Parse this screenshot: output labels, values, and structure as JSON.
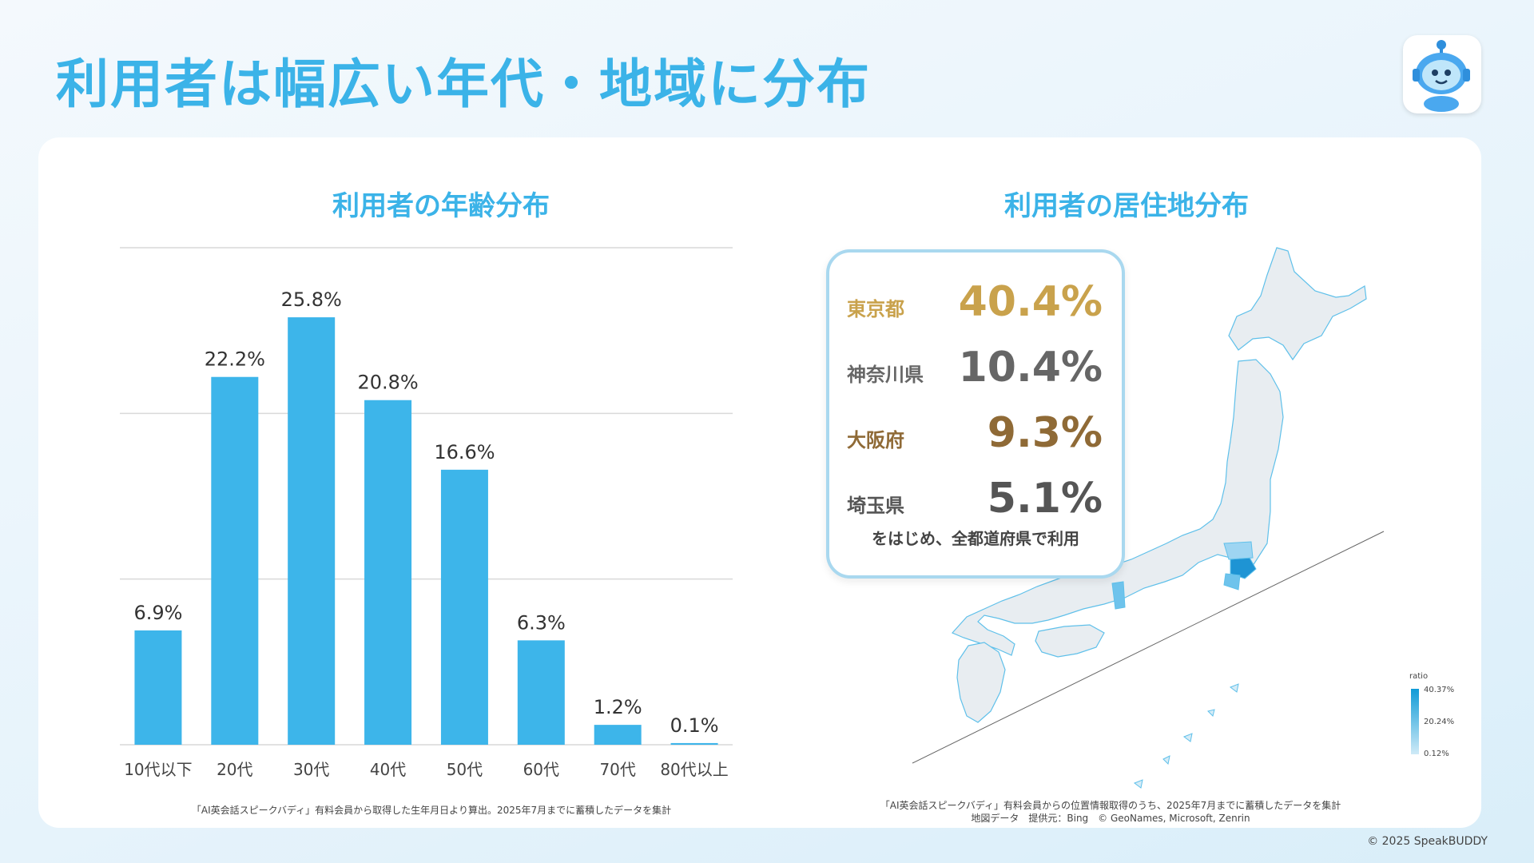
{
  "title": "利用者は幅広い年代・地域に分布",
  "age_panel": {
    "title": "利用者の年齢分布",
    "note": "「AI英会話スピークバディ」有料会員から取得した生年月日より算出。2025年7月までに蓄積したデータを集計"
  },
  "region_panel": {
    "title": "利用者の居住地分布",
    "stats": [
      {
        "name": "東京都",
        "value": "40.4%",
        "color": "#c9a24c"
      },
      {
        "name": "神奈川県",
        "value": "10.4%",
        "color": "#666666"
      },
      {
        "name": "大阪府",
        "value": "9.3%",
        "color": "#8f6a36"
      },
      {
        "name": "埼玉県",
        "value": "5.1%",
        "color": "#555555"
      }
    ],
    "stats_footer": "をはじめ、全都道府県で利用",
    "legend": {
      "title": "ratio",
      "ticks": [
        "40.37%",
        "20.24%",
        "0.12%"
      ]
    },
    "note_line1": "「AI英会話スピークバディ」有料会員からの位置情報取得のうち、2025年7月までに蓄積したデータを集計",
    "note_line2": "地図データ　提供元：Bing　© GeoNames, Microsoft, Zenrin"
  },
  "copyright": "© 2025 SpeakBUDDY",
  "colors": {
    "accent": "#3bb3e8",
    "bar": "#3db5ea"
  },
  "chart_data": {
    "type": "bar",
    "categories": [
      "10代以下",
      "20代",
      "30代",
      "40代",
      "50代",
      "60代",
      "70代",
      "80代以上"
    ],
    "values": [
      6.9,
      22.2,
      25.8,
      20.8,
      16.6,
      6.3,
      1.2,
      0.1
    ],
    "value_labels": [
      "6.9%",
      "22.2%",
      "25.8%",
      "20.8%",
      "16.6%",
      "6.3%",
      "1.2%",
      "0.1%"
    ],
    "title": "利用者の年齢分布",
    "ylim": [
      0,
      30
    ],
    "grid": true
  }
}
